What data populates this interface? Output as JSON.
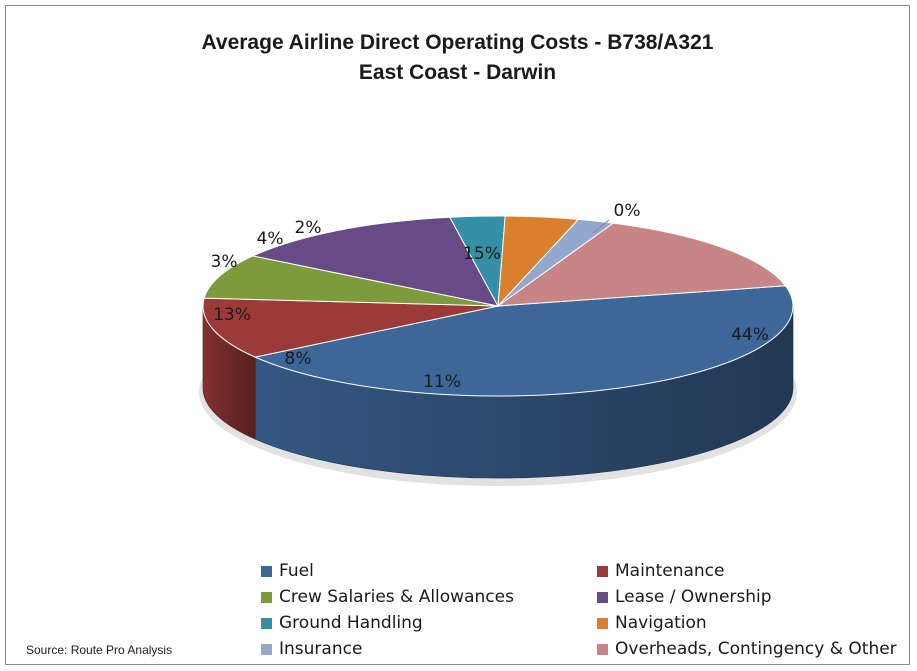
{
  "chart_data": {
    "type": "pie",
    "title": "Average Airline Direct Operating Costs - B738/A321",
    "subtitle": "East Coast - Darwin",
    "style": "3d",
    "legend_position": "bottom",
    "slices": [
      {
        "label": "Fuel",
        "value": 44,
        "display": "44%",
        "color": "#3D6699"
      },
      {
        "label": "Maintenance",
        "value": 11,
        "display": "11%",
        "color": "#9B3A39"
      },
      {
        "label": "Crew Salaries & Allowances",
        "value": 8,
        "display": "8%",
        "color": "#7D9A3C"
      },
      {
        "label": "Lease / Ownership",
        "value": 13,
        "display": "13%",
        "color": "#674A86"
      },
      {
        "label": "Ground Handling",
        "value": 3,
        "display": "3%",
        "color": "#3390A6"
      },
      {
        "label": "Navigation",
        "value": 4,
        "display": "4%",
        "color": "#D97F2E"
      },
      {
        "label": "Insurance",
        "value": 2,
        "display": "2%",
        "color": "#93A8CF"
      },
      {
        "label": "Overheads, Contingency & Other",
        "value": 15,
        "display": "15%",
        "color": "#C78685"
      },
      {
        "label": "",
        "value": 0,
        "display": "0%",
        "color": "#C78685"
      }
    ],
    "legend": [
      {
        "label": "Fuel",
        "color": "#3D6699"
      },
      {
        "label": "Maintenance",
        "color": "#9B3A39"
      },
      {
        "label": "Crew Salaries & Allowances",
        "color": "#7D9A3C"
      },
      {
        "label": "Lease / Ownership",
        "color": "#674A86"
      },
      {
        "label": "Ground Handling",
        "color": "#3390A6"
      },
      {
        "label": "Navigation",
        "color": "#D97F2E"
      },
      {
        "label": "Insurance",
        "color": "#93A8CF"
      },
      {
        "label": "Overheads, Contingency & Other",
        "color": "#C78685"
      }
    ]
  },
  "source": "Source: Route Pro Analysis"
}
